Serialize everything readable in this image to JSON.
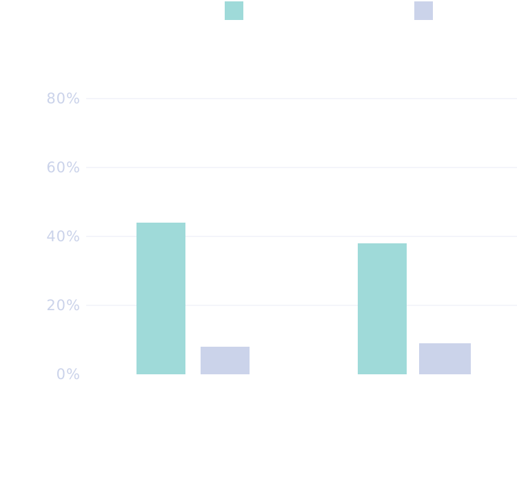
{
  "chart_data": {
    "type": "bar",
    "categories": [
      "",
      ""
    ],
    "series": [
      {
        "color": "#9fdad9",
        "values": [
          44,
          38
        ]
      },
      {
        "color": "#cbd3ea",
        "values": [
          8,
          9
        ]
      }
    ],
    "ylim": [
      0,
      80
    ],
    "yticks": [
      0,
      20,
      40,
      60,
      80
    ],
    "ytick_labels": [
      "0%",
      "20%",
      "40%",
      "60%",
      "80%"
    ],
    "grid": true,
    "legend": "top",
    "colors": {
      "axis_text": "#cbd3ea",
      "grid": "#e8ebf5"
    }
  }
}
